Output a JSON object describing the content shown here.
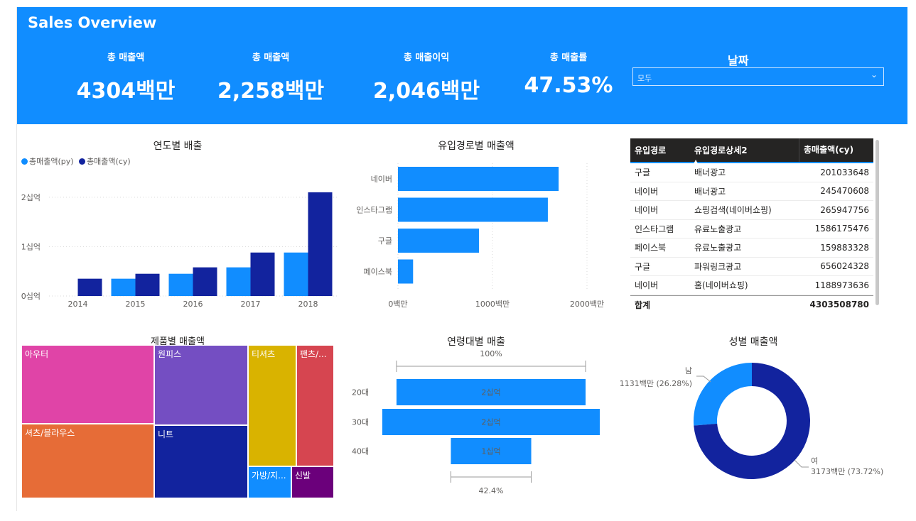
{
  "header": {
    "title": "Sales Overview",
    "kpis": [
      {
        "label": "총 매출액",
        "value": "4304백만"
      },
      {
        "label": "총 매출액",
        "value": "2,258백만"
      },
      {
        "label": "총 매출이익",
        "value": "2,046백만"
      },
      {
        "label": "총 매출률",
        "value": "47.53%"
      }
    ],
    "slicer": {
      "label": "날짜",
      "value": "모두"
    }
  },
  "year_chart": {
    "title": "연도별 배출",
    "legend": [
      "총매출액(py)",
      "총매출액(cy)"
    ],
    "colors": {
      "py": "#118dff",
      "cy": "#12239e"
    },
    "y_ticks": [
      "0십억",
      "1십억",
      "2십억"
    ],
    "chart_data": {
      "type": "bar",
      "categories": [
        "2014",
        "2015",
        "2016",
        "2017",
        "2018"
      ],
      "series": [
        {
          "name": "총매출액(py)",
          "values": [
            0,
            0.35,
            0.45,
            0.58,
            0.88
          ]
        },
        {
          "name": "총매출액(cy)",
          "values": [
            0.35,
            0.45,
            0.58,
            0.88,
            2.1
          ]
        }
      ],
      "ylim": [
        0,
        2.4
      ]
    }
  },
  "channel_chart": {
    "title": "유입경로별 매출액",
    "x_ticks": [
      "0백만",
      "1000백만",
      "2000백만"
    ],
    "chart_data": {
      "type": "bar",
      "categories": [
        "네이버",
        "인스타그램",
        "구글",
        "페이스북"
      ],
      "values": [
        1700,
        1586,
        857,
        160
      ],
      "xlim": [
        0,
        2000
      ]
    }
  },
  "table": {
    "headers": [
      "유입경로",
      "유입경로상세2",
      "총매출액(cy)"
    ],
    "rows": [
      [
        "구글",
        "배너광고",
        "201033648"
      ],
      [
        "네이버",
        "배너광고",
        "245470608"
      ],
      [
        "네이버",
        "쇼핑검색(네이버쇼핑)",
        "265947756"
      ],
      [
        "인스타그램",
        "유료노출광고",
        "1586175476"
      ],
      [
        "페이스북",
        "유료노출광고",
        "159883328"
      ],
      [
        "구글",
        "파워링크광고",
        "656024328"
      ],
      [
        "네이버",
        "홈(네이버쇼핑)",
        "1188973636"
      ]
    ],
    "total_label": "합계",
    "total_value": "4303508780"
  },
  "treemap": {
    "title": "제품별 매출액",
    "cells": [
      {
        "label": "아우터",
        "color": "#e044a7"
      },
      {
        "label": "원피스",
        "color": "#744ec2"
      },
      {
        "label": "티셔츠",
        "color": "#d9b300"
      },
      {
        "label": "팬츠/...",
        "color": "#d64550"
      },
      {
        "label": "셔츠/블라우스",
        "color": "#e66c37"
      },
      {
        "label": "니트",
        "color": "#12239e"
      },
      {
        "label": "가방/지...",
        "color": "#118dff"
      },
      {
        "label": "신발",
        "color": "#6b007b"
      }
    ]
  },
  "funnel": {
    "title": "연령대별 매출",
    "top_pct": "100%",
    "bottom_pct": "42.4%",
    "chart_data": {
      "type": "bar",
      "categories": [
        "20대",
        "30대",
        "40대"
      ],
      "values": [
        2.0,
        2.3,
        0.85
      ],
      "labels": [
        "2십억",
        "2십억",
        "1십억"
      ]
    }
  },
  "gender_chart": {
    "title": "성별 매출액",
    "chart_data": {
      "type": "pie",
      "categories": [
        "남",
        "여"
      ],
      "values": [
        1131,
        3173
      ],
      "percent": [
        26.28,
        73.72
      ],
      "labels": [
        "1131백만 (26.28%)",
        "3173백만 (73.72%)"
      ],
      "colors": [
        "#118dff",
        "#12239e"
      ]
    }
  }
}
